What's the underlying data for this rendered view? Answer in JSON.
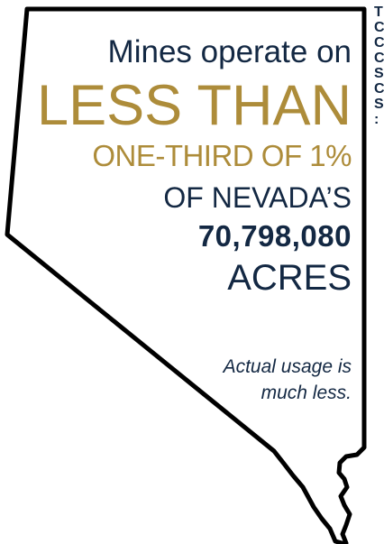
{
  "headline": {
    "line1": "Mines operate on",
    "line2": "LESS THAN",
    "line3": "ONE-THIRD OF 1%",
    "line4": "OF NEVADA’S",
    "line5": "70,798,080",
    "line6": "ACRES"
  },
  "note": {
    "line1": "Actual usage is",
    "line2": "much less."
  },
  "colors": {
    "navy": "#132843",
    "gold": "#ad8c3a",
    "outline": "#000000",
    "background": "#ffffff"
  }
}
